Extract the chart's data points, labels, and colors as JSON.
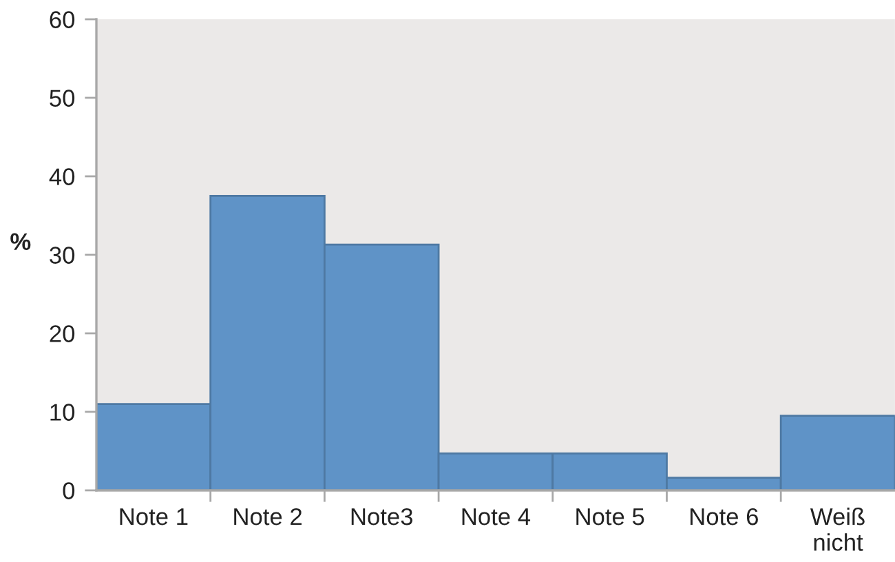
{
  "chart_data": {
    "type": "bar",
    "ylabel": "%",
    "categories": [
      "Note 1",
      "Note 2",
      "Note3",
      "Note 4",
      "Note 5",
      "Note 6",
      "Weiß\nnicht"
    ],
    "values": [
      11,
      37.5,
      31.3,
      4.7,
      4.7,
      1.6,
      9.5
    ],
    "color": "#5f93c7",
    "ylim": [
      0,
      60
    ],
    "yticks": [
      0,
      10,
      20,
      30,
      40,
      50,
      60
    ]
  }
}
